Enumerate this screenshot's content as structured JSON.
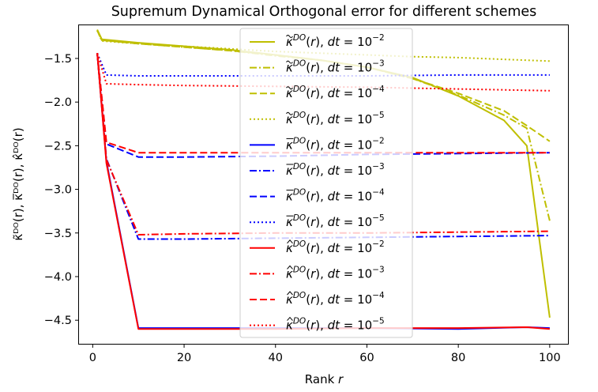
{
  "chart_data": {
    "type": "line",
    "title": "Supremum Dynamical Orthogonal error for different schemes",
    "xlabel": "Rank r",
    "xlabel_parts": {
      "text": "Rank ",
      "var": "r"
    },
    "ylabel": "κ̃ᴰᴼ(r), κ̅ᴰᴼ(r), κ̂ᴰᴼ(r)",
    "xlim": [
      -3,
      104
    ],
    "ylim": [
      -4.77,
      -1.12
    ],
    "xticks": [
      0,
      20,
      40,
      60,
      80,
      100
    ],
    "xtick_labels": [
      "0",
      "20",
      "40",
      "60",
      "80",
      "100"
    ],
    "yticks": [
      -4.5,
      -4.0,
      -3.5,
      -3.0,
      -2.5,
      -2.0,
      -1.5
    ],
    "ytick_labels": [
      "−4.5",
      "−4.0",
      "−3.5",
      "−3.0",
      "−2.5",
      "−2.0",
      "−1.5"
    ],
    "grid": false,
    "legend_position": "top-center",
    "colors": {
      "olive": "#bfbf00",
      "blue": "#0000ff",
      "red": "#ff0000"
    },
    "series": [
      {
        "name": "κ̃ᴰᴼ(r), dt = 10⁻²",
        "sym": "tilde",
        "exp": "−2",
        "color": "#bfbf00",
        "style": "solid",
        "x": [
          1,
          2,
          10,
          20,
          30,
          40,
          50,
          60,
          70,
          80,
          90,
          95,
          100
        ],
        "y": [
          -1.17,
          -1.28,
          -1.32,
          -1.36,
          -1.4,
          -1.46,
          -1.52,
          -1.6,
          -1.72,
          -1.93,
          -2.21,
          -2.5,
          -4.47
        ]
      },
      {
        "name": "κ̃ᴰᴼ(r), dt = 10⁻³",
        "sym": "tilde",
        "exp": "−3",
        "color": "#bfbf00",
        "style": "dashdot",
        "x": [
          1,
          2,
          10,
          20,
          30,
          40,
          50,
          60,
          70,
          80,
          90,
          95,
          100
        ],
        "y": [
          -1.18,
          -1.29,
          -1.33,
          -1.37,
          -1.41,
          -1.47,
          -1.52,
          -1.6,
          -1.73,
          -1.92,
          -2.15,
          -2.3,
          -3.36
        ]
      },
      {
        "name": "κ̃ᴰᴼ(r), dt = 10⁻⁴",
        "sym": "tilde",
        "exp": "−4",
        "color": "#bfbf00",
        "style": "dashed",
        "x": [
          1,
          2,
          10,
          20,
          30,
          40,
          50,
          60,
          70,
          80,
          90,
          95,
          100
        ],
        "y": [
          -1.18,
          -1.29,
          -1.33,
          -1.37,
          -1.41,
          -1.46,
          -1.52,
          -1.6,
          -1.73,
          -1.9,
          -2.1,
          -2.27,
          -2.45
        ]
      },
      {
        "name": "κ̃ᴰᴼ(r), dt = 10⁻⁵",
        "sym": "tilde",
        "exp": "−5",
        "color": "#bfbf00",
        "style": "dotted",
        "x": [
          1,
          2,
          10,
          20,
          30,
          40,
          50,
          60,
          70,
          80,
          90,
          100
        ],
        "y": [
          -1.18,
          -1.3,
          -1.33,
          -1.36,
          -1.39,
          -1.42,
          -1.44,
          -1.46,
          -1.48,
          -1.49,
          -1.51,
          -1.53
        ]
      },
      {
        "name": "κ̅ᴰᴼ(r), dt = 10⁻²",
        "sym": "bar",
        "exp": "−2",
        "color": "#0000ff",
        "style": "solid",
        "x": [
          1,
          3,
          10,
          20,
          40,
          60,
          80,
          95,
          100
        ],
        "y": [
          -1.44,
          -2.68,
          -4.59,
          -4.59,
          -4.59,
          -4.59,
          -4.6,
          -4.58,
          -4.59
        ]
      },
      {
        "name": "κ̅ᴰᴼ(r), dt = 10⁻³",
        "sym": "bar",
        "exp": "−3",
        "color": "#0000ff",
        "style": "dashdot",
        "x": [
          1,
          3,
          10,
          20,
          40,
          60,
          80,
          100
        ],
        "y": [
          -1.44,
          -2.65,
          -3.57,
          -3.57,
          -3.56,
          -3.55,
          -3.54,
          -3.53
        ]
      },
      {
        "name": "κ̅ᴰᴼ(r), dt = 10⁻⁴",
        "sym": "bar",
        "exp": "−4",
        "color": "#0000ff",
        "style": "dashed",
        "x": [
          1,
          3,
          10,
          20,
          40,
          60,
          80,
          100
        ],
        "y": [
          -1.44,
          -2.48,
          -2.63,
          -2.63,
          -2.62,
          -2.6,
          -2.59,
          -2.58
        ]
      },
      {
        "name": "κ̅ᴰᴼ(r), dt = 10⁻⁵",
        "sym": "bar",
        "exp": "−5",
        "color": "#0000ff",
        "style": "dotted",
        "x": [
          1,
          3,
          10,
          20,
          40,
          60,
          80,
          100
        ],
        "y": [
          -1.44,
          -1.69,
          -1.7,
          -1.7,
          -1.7,
          -1.7,
          -1.69,
          -1.69
        ]
      },
      {
        "name": "κ̂ᴰᴼ(r), dt = 10⁻²",
        "sym": "hat",
        "exp": "−2",
        "color": "#ff0000",
        "style": "solid",
        "x": [
          1,
          3,
          10,
          20,
          40,
          60,
          80,
          95,
          100
        ],
        "y": [
          -1.44,
          -2.7,
          -4.6,
          -4.6,
          -4.6,
          -4.59,
          -4.59,
          -4.58,
          -4.6
        ]
      },
      {
        "name": "κ̂ᴰᴼ(r), dt = 10⁻³",
        "sym": "hat",
        "exp": "−3",
        "color": "#ff0000",
        "style": "dashdot",
        "x": [
          1,
          3,
          10,
          20,
          40,
          60,
          80,
          100
        ],
        "y": [
          -1.44,
          -2.66,
          -3.52,
          -3.51,
          -3.5,
          -3.5,
          -3.49,
          -3.48
        ]
      },
      {
        "name": "κ̂ᴰᴼ(r), dt = 10⁻⁴",
        "sym": "hat",
        "exp": "−4",
        "color": "#ff0000",
        "style": "dashed",
        "x": [
          1,
          3,
          10,
          20,
          40,
          60,
          80,
          100
        ],
        "y": [
          -1.44,
          -2.46,
          -2.58,
          -2.58,
          -2.58,
          -2.58,
          -2.58,
          -2.58
        ]
      },
      {
        "name": "κ̂ᴰᴼ(r), dt = 10⁻⁵",
        "sym": "hat",
        "exp": "−5",
        "color": "#ff0000",
        "style": "dotted",
        "x": [
          1,
          3,
          10,
          20,
          40,
          60,
          80,
          100
        ],
        "y": [
          -1.44,
          -1.79,
          -1.8,
          -1.81,
          -1.82,
          -1.83,
          -1.85,
          -1.87
        ]
      }
    ]
  }
}
